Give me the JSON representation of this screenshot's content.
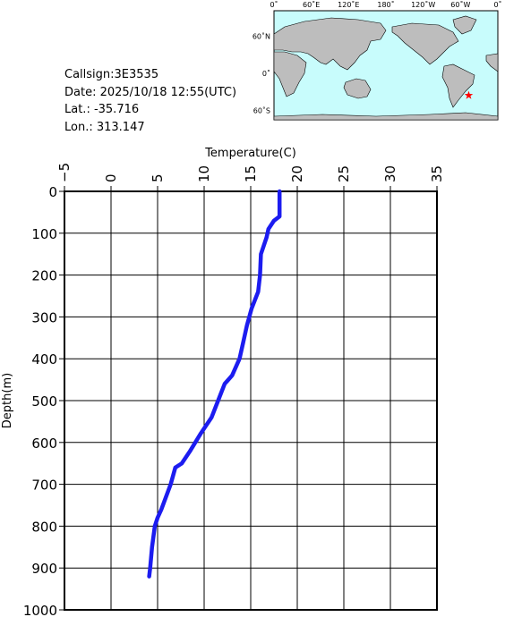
{
  "info": {
    "callsign": "Callsign:3E3535",
    "date": "Date:  2025/10/18 12:55(UTC)",
    "lat": "Lat.:  -35.716",
    "lon": "Lon.:  313.147"
  },
  "map": {
    "lonticks": [
      {
        "value": 0,
        "label": "0˚"
      },
      {
        "value": 60,
        "label": "60˚E"
      },
      {
        "value": 120,
        "label": "120˚E"
      },
      {
        "value": 180,
        "label": "180˚"
      },
      {
        "value": 240,
        "label": "120˚W"
      },
      {
        "value": 300,
        "label": "60˚W"
      },
      {
        "value": 360,
        "label": "0˚"
      }
    ],
    "latticks": [
      {
        "value": 60,
        "label": "60˚N"
      },
      {
        "value": 0,
        "label": "0˚"
      },
      {
        "value": -60,
        "label": "60˚S"
      }
    ],
    "station": {
      "lon": 313.147,
      "lat": -35.716,
      "color": "#ff0000"
    }
  },
  "chart_data": {
    "type": "line",
    "x_label": "Temperature(C)",
    "y_label": "Depth(m)",
    "xlim": [
      -5,
      35
    ],
    "xticks": [
      {
        "value": -5,
        "label": "−5"
      },
      0,
      5,
      10,
      15,
      20,
      25,
      30,
      35
    ],
    "ylim": [
      0,
      1000
    ],
    "yticks": [
      0,
      100,
      200,
      300,
      400,
      500,
      600,
      700,
      800,
      900,
      1000
    ],
    "y_inverted": true,
    "grid": true,
    "depth": [
      0,
      60,
      70,
      90,
      110,
      150,
      200,
      240,
      280,
      320,
      360,
      400,
      440,
      460,
      500,
      540,
      580,
      620,
      650,
      660,
      700,
      760,
      780,
      800,
      850,
      900,
      920
    ],
    "series": [
      {
        "color": "#1c1cf0",
        "values": [
          18.1,
          18.1,
          17.5,
          16.9,
          16.7,
          16.1,
          16.0,
          15.8,
          15.1,
          14.6,
          14.2,
          13.8,
          13.0,
          12.2,
          11.5,
          10.8,
          9.6,
          8.5,
          7.6,
          6.9,
          6.4,
          5.4,
          5.0,
          4.7,
          4.4,
          4.2,
          4.1
        ]
      }
    ]
  }
}
